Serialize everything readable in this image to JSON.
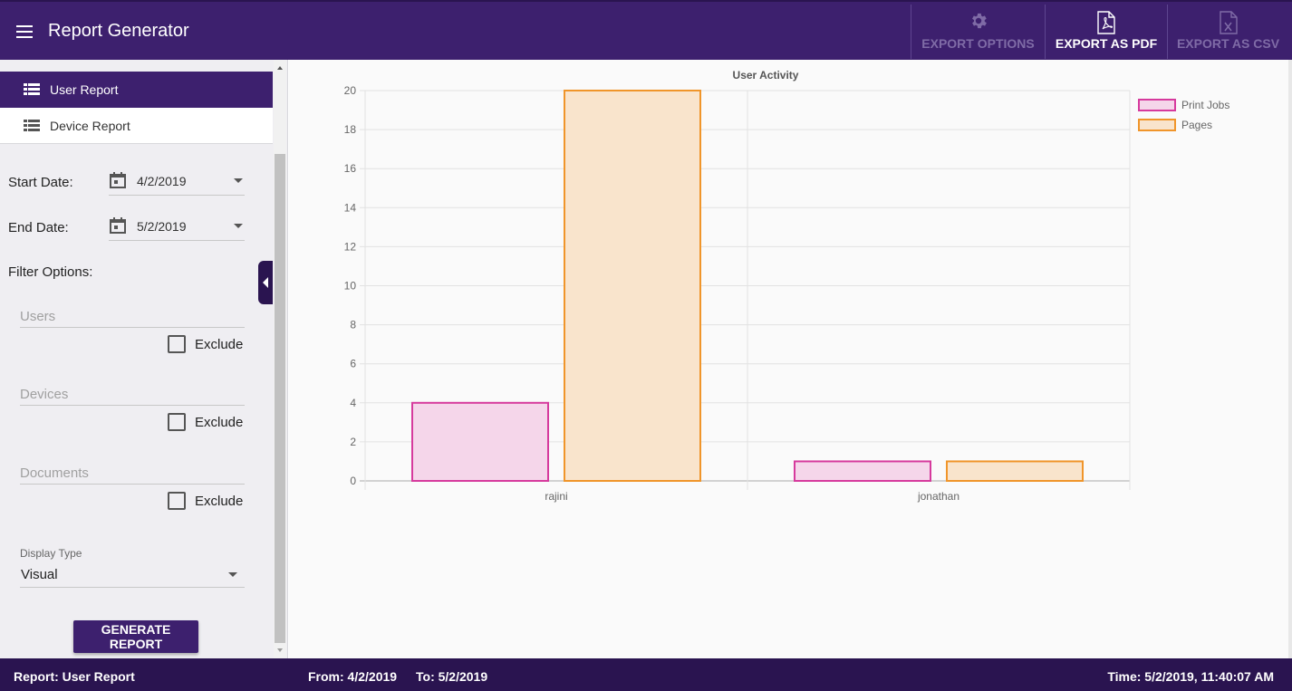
{
  "header": {
    "title": "Report Generator",
    "buttons": {
      "export_options": "EXPORT OPTIONS",
      "export_pdf": "EXPORT AS PDF",
      "export_csv": "EXPORT AS CSV"
    }
  },
  "sidebar": {
    "nav": [
      {
        "label": "User Report",
        "active": true
      },
      {
        "label": "Device Report",
        "active": false
      }
    ],
    "start_date_label": "Start Date:",
    "start_date": "4/2/2019",
    "end_date_label": "End Date:",
    "end_date": "5/2/2019",
    "filter_label": "Filter Options:",
    "filters": [
      {
        "placeholder": "Users",
        "exclude_label": "Exclude"
      },
      {
        "placeholder": "Devices",
        "exclude_label": "Exclude"
      },
      {
        "placeholder": "Documents",
        "exclude_label": "Exclude"
      }
    ],
    "display_type_label": "Display Type",
    "display_type_value": "Visual",
    "generate_label": "GENERATE REPORT"
  },
  "chart_data": {
    "type": "bar",
    "title": "User Activity",
    "categories": [
      "rajini",
      "jonathan"
    ],
    "series": [
      {
        "name": "Print Jobs",
        "values": [
          4,
          1
        ],
        "color": "#d63a9d",
        "fill": "#f5d6ea"
      },
      {
        "name": "Pages",
        "values": [
          20,
          1
        ],
        "color": "#f0952a",
        "fill": "#f9e4cc"
      }
    ],
    "ylim": [
      0,
      20
    ],
    "yticks": [
      0,
      2,
      4,
      6,
      8,
      10,
      12,
      14,
      16,
      18,
      20
    ],
    "legend": "top-right",
    "grid": true
  },
  "footer": {
    "report": "Report: User Report",
    "from": "From: 4/2/2019",
    "to": "To: 5/2/2019",
    "time": "Time: 5/2/2019, 11:40:07 AM"
  },
  "colors": {
    "primary": "#3d206e",
    "dark": "#2a1450"
  }
}
